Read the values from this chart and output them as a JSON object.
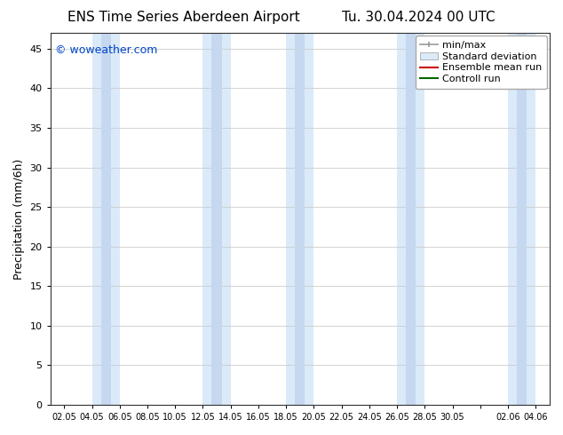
{
  "title_left": "ENS Time Series Aberdeen Airport",
  "title_right": "Tu. 30.04.2024 00 UTC",
  "ylabel": "Precipitation (mm/6h)",
  "watermark": "© woweather.com",
  "ylim": [
    0,
    47
  ],
  "yticks": [
    0,
    5,
    10,
    15,
    20,
    25,
    30,
    35,
    40,
    45
  ],
  "xtick_labels": [
    "02.05",
    "04.05",
    "06.05",
    "08.05",
    "10.05",
    "12.05",
    "14.05",
    "16.05",
    "18.05",
    "20.05",
    "22.05",
    "24.05",
    "26.05",
    "28.05",
    "30.05",
    "",
    "02.06",
    "04.06"
  ],
  "bg_color": "#ffffff",
  "plot_bg_color": "#ffffff",
  "band_color_outer": "#daeaf8",
  "band_color_inner": "#c5d8ef",
  "legend_labels": [
    "min/max",
    "Standard deviation",
    "Ensemble mean run",
    "Controll run"
  ],
  "band_pairs": [
    [
      "04.05",
      "06.05"
    ],
    [
      "12.05",
      "14.05"
    ],
    [
      "18.05",
      "20.05"
    ],
    [
      "26.05",
      "28.05"
    ],
    [
      "02.06",
      "04.06"
    ]
  ],
  "font_size_title": 11,
  "font_size_axis_label": 9,
  "font_size_tick": 8,
  "font_size_legend": 8,
  "font_size_watermark": 9
}
